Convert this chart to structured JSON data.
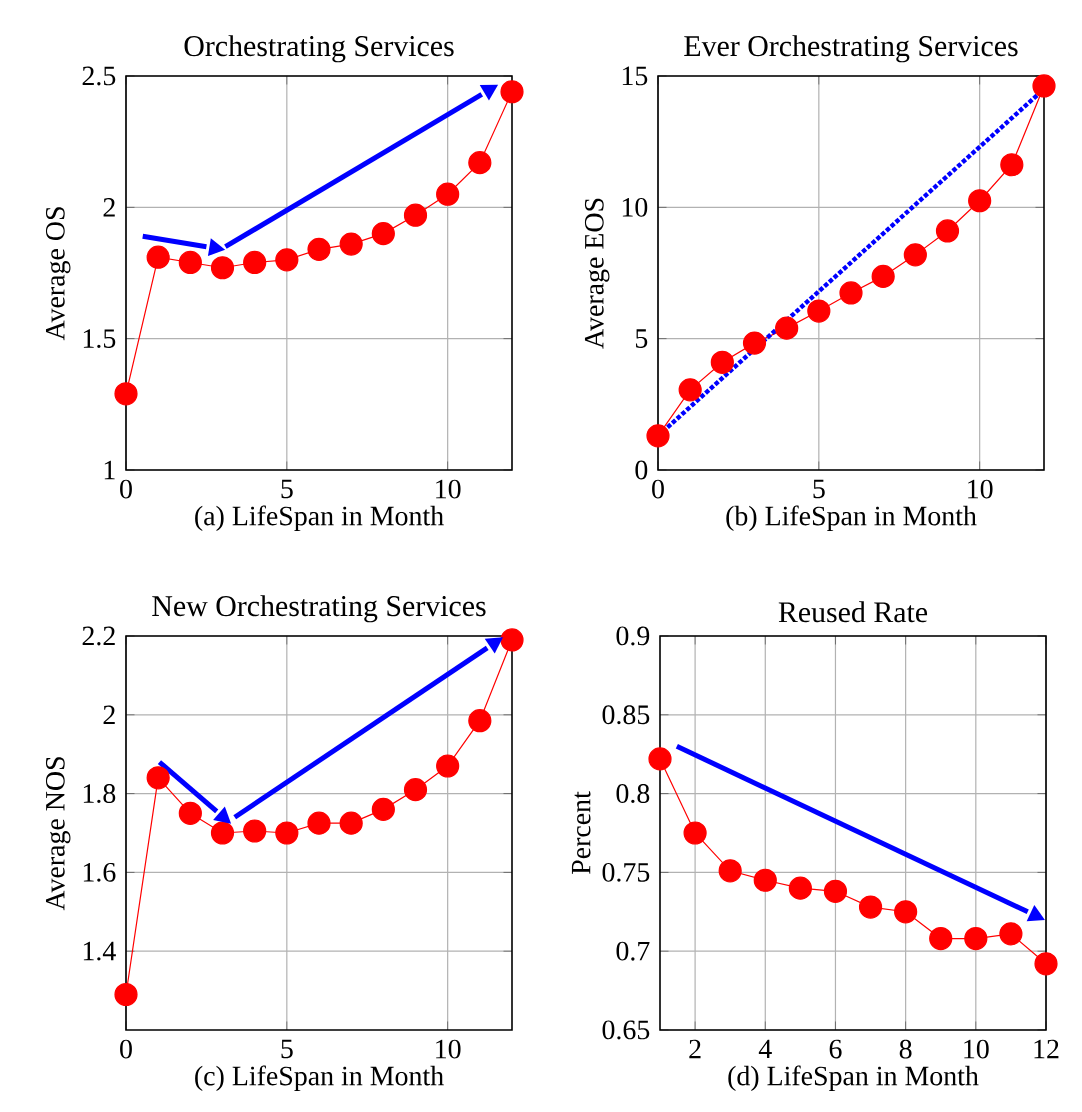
{
  "chart_data": [
    {
      "type": "line",
      "title": "Orchestrating Services",
      "xlabel": "(a) LifeSpan in Month",
      "ylabel": "Average OS",
      "xlim": [
        0,
        12
      ],
      "ylim": [
        1,
        2.5
      ],
      "xticks": [
        0,
        5,
        10
      ],
      "yticks": [
        1,
        1.5,
        2,
        2.5
      ],
      "grid": true,
      "marker": "circle",
      "x": [
        0,
        1,
        2,
        3,
        4,
        5,
        6,
        7,
        8,
        9,
        10,
        11,
        12
      ],
      "series": [
        {
          "color": "#ff0000",
          "line_style": "solid",
          "values": [
            1.29,
            1.81,
            1.79,
            1.77,
            1.79,
            1.8,
            1.84,
            1.86,
            1.9,
            1.97,
            2.05,
            2.17,
            2.44
          ]
        },
        {
          "color": "#0000ff",
          "marker": "none",
          "line_style": "solid",
          "x": [
            0.52,
            2.5
          ],
          "values": [
            1.89,
            1.85
          ]
        },
        {
          "color": "#0000ff",
          "marker": "none",
          "line_style": "solid",
          "x": [
            3.09,
            11.06
          ],
          "values": [
            1.85,
            2.43
          ]
        }
      ]
    },
    {
      "type": "line",
      "title": "Ever Orchestrating Services",
      "xlabel": "(b) LifeSpan in Month",
      "ylabel": "Average EOS",
      "xlim": [
        0,
        12
      ],
      "ylim": [
        0,
        15
      ],
      "xticks": [
        0,
        5,
        10
      ],
      "yticks": [
        0,
        5,
        10,
        15
      ],
      "grid": true,
      "marker": "circle",
      "x": [
        0,
        1,
        2,
        3,
        4,
        5,
        6,
        7,
        8,
        9,
        10,
        11,
        12
      ],
      "series": [
        {
          "color": "#ff0000",
          "line_style": "solid",
          "values": [
            1.3,
            3.05,
            4.1,
            4.83,
            5.4,
            6.05,
            6.74,
            7.37,
            8.19,
            9.1,
            10.25,
            11.62,
            14.62
          ]
        },
        {
          "color": "#0000ff",
          "marker": "none",
          "line_style": "dotted",
          "x": [
            0,
            12
          ],
          "values": [
            1.3,
            14.5
          ]
        }
      ]
    },
    {
      "type": "line",
      "title": "New Orchestrating Services",
      "xlabel": "(c) LifeSpan in Month",
      "ylabel": "Average NOS",
      "xlim": [
        0,
        12
      ],
      "ylim": [
        1.2,
        2.2
      ],
      "xticks": [
        0,
        5,
        10
      ],
      "yticks": [
        1.4,
        1.6,
        1.8,
        2,
        2.2
      ],
      "grid": true,
      "marker": "circle",
      "x": [
        0,
        1,
        2,
        3,
        4,
        5,
        6,
        7,
        8,
        9,
        10,
        11,
        12
      ],
      "series": [
        {
          "color": "#ff0000",
          "line_style": "solid",
          "values": [
            1.29,
            1.84,
            1.75,
            1.7,
            1.705,
            1.7,
            1.725,
            1.725,
            1.76,
            1.81,
            1.87,
            1.985,
            2.19
          ]
        },
        {
          "color": "#0000ff",
          "marker": "none",
          "line_style": "solid",
          "x": [
            1.04,
            2.82
          ],
          "values": [
            1.88,
            1.755
          ]
        },
        {
          "color": "#0000ff",
          "marker": "none",
          "line_style": "solid",
          "x": [
            3.38,
            11.23
          ],
          "values": [
            1.74,
            2.17
          ]
        }
      ]
    },
    {
      "type": "line",
      "title": "Reused Rate",
      "xlabel": "(d) LifeSpan in Month",
      "ylabel": "Percent",
      "xlim": [
        1,
        12
      ],
      "ylim": [
        0.65,
        0.9
      ],
      "xticks": [
        2,
        4,
        6,
        8,
        10,
        12
      ],
      "yticks": [
        0.65,
        0.7,
        0.75,
        0.8,
        0.85,
        0.9
      ],
      "grid": true,
      "marker": "circle",
      "x": [
        1,
        2,
        3,
        4,
        5,
        6,
        7,
        8,
        9,
        10,
        11,
        12
      ],
      "series": [
        {
          "color": "#ff0000",
          "line_style": "solid",
          "values": [
            0.822,
            0.775,
            0.751,
            0.745,
            0.74,
            0.738,
            0.728,
            0.725,
            0.708,
            0.708,
            0.711,
            0.692
          ]
        },
        {
          "color": "#0000ff",
          "marker": "none",
          "line_style": "solid",
          "x": [
            1.48,
            11.48
          ],
          "values": [
            0.83,
            0.725
          ]
        }
      ]
    }
  ]
}
